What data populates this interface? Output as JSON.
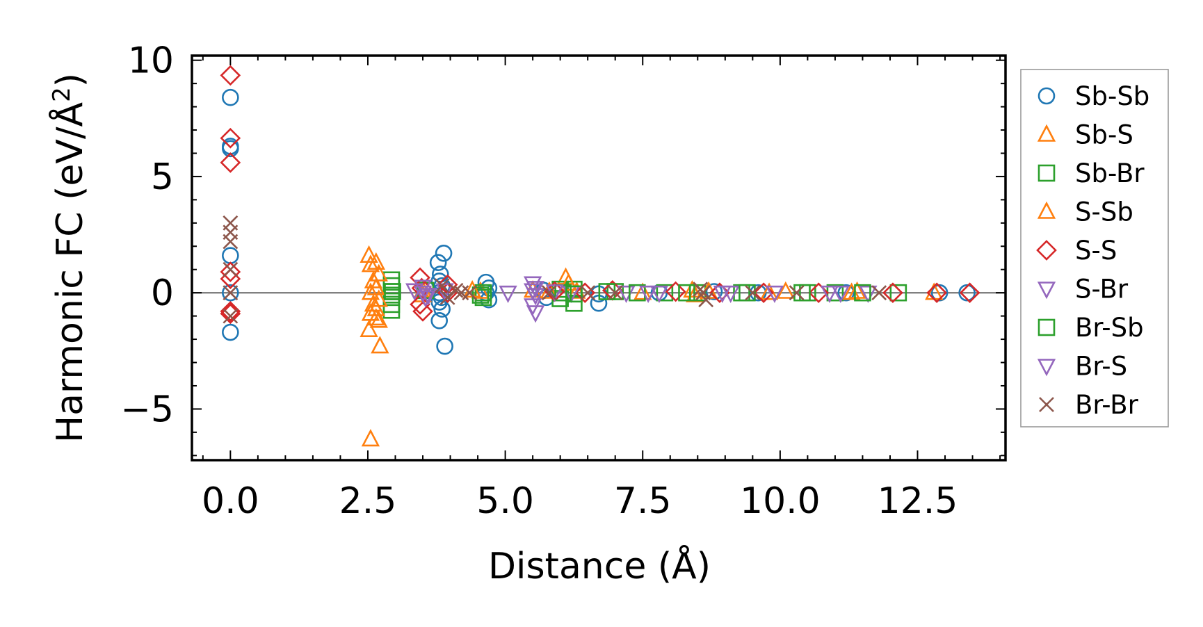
{
  "chart_data": {
    "type": "scatter",
    "xlabel": "Distance (Å)",
    "ylabel_main": "Harmonic FC (eV/Å",
    "ylabel_sup": "2",
    "ylabel_close": ")",
    "xlim": [
      -0.7,
      14.1
    ],
    "ylim": [
      -7.2,
      10.2
    ],
    "xticks": [
      0,
      2.5,
      5,
      7.5,
      10,
      12.5
    ],
    "xtick_labels": [
      "0.0",
      "2.5",
      "5.0",
      "7.5",
      "10.0",
      "12.5"
    ],
    "yticks": [
      -5,
      0,
      5,
      10
    ],
    "ytick_labels": [
      "−5",
      "0",
      "5",
      "10"
    ],
    "reference_line_y": 0,
    "legend_position": "outside-right",
    "series": [
      {
        "name": "Sb-Sb",
        "marker": "circle",
        "color": "#1f77b4",
        "points": [
          [
            0,
            8.4
          ],
          [
            0,
            6.3
          ],
          [
            0,
            6.2
          ],
          [
            0,
            1.6
          ],
          [
            0,
            0
          ],
          [
            0,
            -1.7
          ],
          [
            3.78,
            1.3
          ],
          [
            3.82,
            0.8
          ],
          [
            3.88,
            1.7
          ],
          [
            3.8,
            0.5
          ],
          [
            3.85,
            0.3
          ],
          [
            3.8,
            0
          ],
          [
            3.84,
            -0.2
          ],
          [
            3.8,
            -0.4
          ],
          [
            3.85,
            -0.7
          ],
          [
            3.8,
            -1.2
          ],
          [
            3.9,
            -2.3
          ],
          [
            4.65,
            0.45
          ],
          [
            4.7,
            0.2
          ],
          [
            4.65,
            0
          ],
          [
            4.7,
            -0.3
          ],
          [
            5.7,
            0.1
          ],
          [
            5.75,
            -0.2
          ],
          [
            6.7,
            -0.05
          ],
          [
            6.7,
            -0.45
          ],
          [
            7.8,
            0
          ],
          [
            8.8,
            0.05
          ],
          [
            9.6,
            0
          ],
          [
            11.2,
            0
          ],
          [
            12.9,
            0
          ],
          [
            13.4,
            0
          ]
        ]
      },
      {
        "name": "Sb-S",
        "marker": "triangle-up",
        "color": "#ff7f0e",
        "points": [
          [
            2.52,
            1.6
          ],
          [
            2.55,
            1.2
          ],
          [
            2.6,
            0.5
          ],
          [
            2.55,
            0
          ],
          [
            2.6,
            -0.5
          ],
          [
            2.55,
            -0.9
          ],
          [
            2.52,
            -1.6
          ],
          [
            2.55,
            -6.3
          ],
          [
            3.5,
            0.1
          ],
          [
            3.5,
            -0.1
          ],
          [
            4.55,
            0.05
          ],
          [
            5.5,
            0.1
          ],
          [
            6.1,
            0.65
          ],
          [
            6.3,
            0.05
          ],
          [
            8.4,
            0.1
          ],
          [
            8.45,
            -0.1
          ],
          [
            10.1,
            0.05
          ],
          [
            11.4,
            0.05
          ],
          [
            12.8,
            0
          ]
        ]
      },
      {
        "name": "Sb-Br",
        "marker": "square",
        "color": "#2ca02c",
        "points": [
          [
            2.93,
            0.55
          ],
          [
            2.93,
            0.3
          ],
          [
            2.93,
            0.05
          ],
          [
            2.93,
            -0.2
          ],
          [
            2.93,
            -0.5
          ],
          [
            2.93,
            -0.75
          ],
          [
            3.55,
            0.1
          ],
          [
            4.6,
            0
          ],
          [
            4.6,
            -0.2
          ],
          [
            6.0,
            0.15
          ],
          [
            6.0,
            -0.25
          ],
          [
            6.25,
            0.15
          ],
          [
            6.25,
            -0.45
          ],
          [
            7.0,
            0.05
          ],
          [
            7.9,
            0
          ],
          [
            8.5,
            0
          ],
          [
            9.3,
            0
          ],
          [
            10.5,
            0
          ],
          [
            11.0,
            0
          ],
          [
            12.15,
            0
          ]
        ]
      },
      {
        "name": "S-Sb",
        "marker": "triangle-up",
        "color": "#ff7f0e",
        "points": [
          [
            2.65,
            1.3
          ],
          [
            2.7,
            0.8
          ],
          [
            2.65,
            0.2
          ],
          [
            2.7,
            -0.3
          ],
          [
            2.65,
            -0.7
          ],
          [
            2.7,
            -1.2
          ],
          [
            2.72,
            -2.3
          ],
          [
            2.65,
            -1.1
          ],
          [
            4.4,
            0.1
          ],
          [
            5.8,
            0.05
          ],
          [
            6.15,
            0.4
          ],
          [
            7.5,
            0
          ],
          [
            8.7,
            0.05
          ],
          [
            9.8,
            0
          ],
          [
            11.3,
            0
          ]
        ]
      },
      {
        "name": "S-S",
        "marker": "diamond",
        "color": "#d62728",
        "points": [
          [
            0,
            9.35
          ],
          [
            0,
            6.65
          ],
          [
            0,
            5.6
          ],
          [
            0,
            0.9
          ],
          [
            0,
            0.6
          ],
          [
            0,
            -0.8
          ],
          [
            0,
            -0.9
          ],
          [
            3.45,
            0.65
          ],
          [
            3.48,
            0.2
          ],
          [
            3.45,
            -0.5
          ],
          [
            3.5,
            -0.8
          ],
          [
            3.95,
            0.35
          ],
          [
            3.95,
            0
          ],
          [
            5.9,
            0.05
          ],
          [
            6.45,
            0
          ],
          [
            6.95,
            0.1
          ],
          [
            8.1,
            0.05
          ],
          [
            8.9,
            0
          ],
          [
            9.7,
            0
          ],
          [
            10.7,
            0
          ],
          [
            12.05,
            0
          ],
          [
            12.85,
            0
          ],
          [
            13.45,
            0
          ]
        ]
      },
      {
        "name": "S-Br",
        "marker": "triangle-down",
        "color": "#9467bd",
        "points": [
          [
            3.5,
            0.25
          ],
          [
            3.5,
            0
          ],
          [
            3.55,
            -0.2
          ],
          [
            3.9,
            0.1
          ],
          [
            5.05,
            0
          ],
          [
            5.5,
            0.4
          ],
          [
            5.5,
            0.1
          ],
          [
            5.55,
            -0.1
          ],
          [
            5.5,
            -0.55
          ],
          [
            5.55,
            -0.85
          ],
          [
            6.2,
            0
          ],
          [
            7.2,
            0
          ],
          [
            7.8,
            0
          ],
          [
            9.1,
            0
          ],
          [
            11.1,
            0
          ],
          [
            11.6,
            0
          ]
        ]
      },
      {
        "name": "Br-Sb",
        "marker": "square",
        "color": "#2ca02c",
        "points": [
          [
            2.95,
            0.05
          ],
          [
            4.55,
            -0.1
          ],
          [
            6.05,
            0
          ],
          [
            6.25,
            -0.05
          ],
          [
            6.85,
            0.05
          ],
          [
            7.4,
            0
          ],
          [
            8.3,
            0
          ],
          [
            9.4,
            0
          ],
          [
            10.4,
            0
          ],
          [
            11.5,
            0
          ]
        ]
      },
      {
        "name": "Br-S",
        "marker": "triangle-down",
        "color": "#9467bd",
        "points": [
          [
            3.35,
            0.1
          ],
          [
            3.6,
            -0.1
          ],
          [
            5.55,
            0.2
          ],
          [
            5.9,
            0.05
          ],
          [
            7.6,
            0
          ],
          [
            8.95,
            0
          ],
          [
            9.9,
            0
          ],
          [
            10.9,
            0
          ]
        ]
      },
      {
        "name": "Br-Br",
        "marker": "x",
        "color": "#8c564b",
        "points": [
          [
            0,
            3.0
          ],
          [
            0,
            2.6
          ],
          [
            0,
            2.2
          ],
          [
            0,
            1.0
          ],
          [
            0,
            0
          ],
          [
            0,
            -1.0
          ],
          [
            3.85,
            0.3
          ],
          [
            3.95,
            -0.2
          ],
          [
            4.1,
            0.1
          ],
          [
            4.2,
            0
          ],
          [
            4.35,
            0
          ],
          [
            5.8,
            0
          ],
          [
            6.5,
            0
          ],
          [
            7.0,
            0
          ],
          [
            8.55,
            0.15
          ],
          [
            8.6,
            0
          ],
          [
            8.65,
            -0.3
          ],
          [
            9.5,
            0
          ],
          [
            10.3,
            0
          ],
          [
            11.8,
            0
          ]
        ]
      }
    ]
  }
}
